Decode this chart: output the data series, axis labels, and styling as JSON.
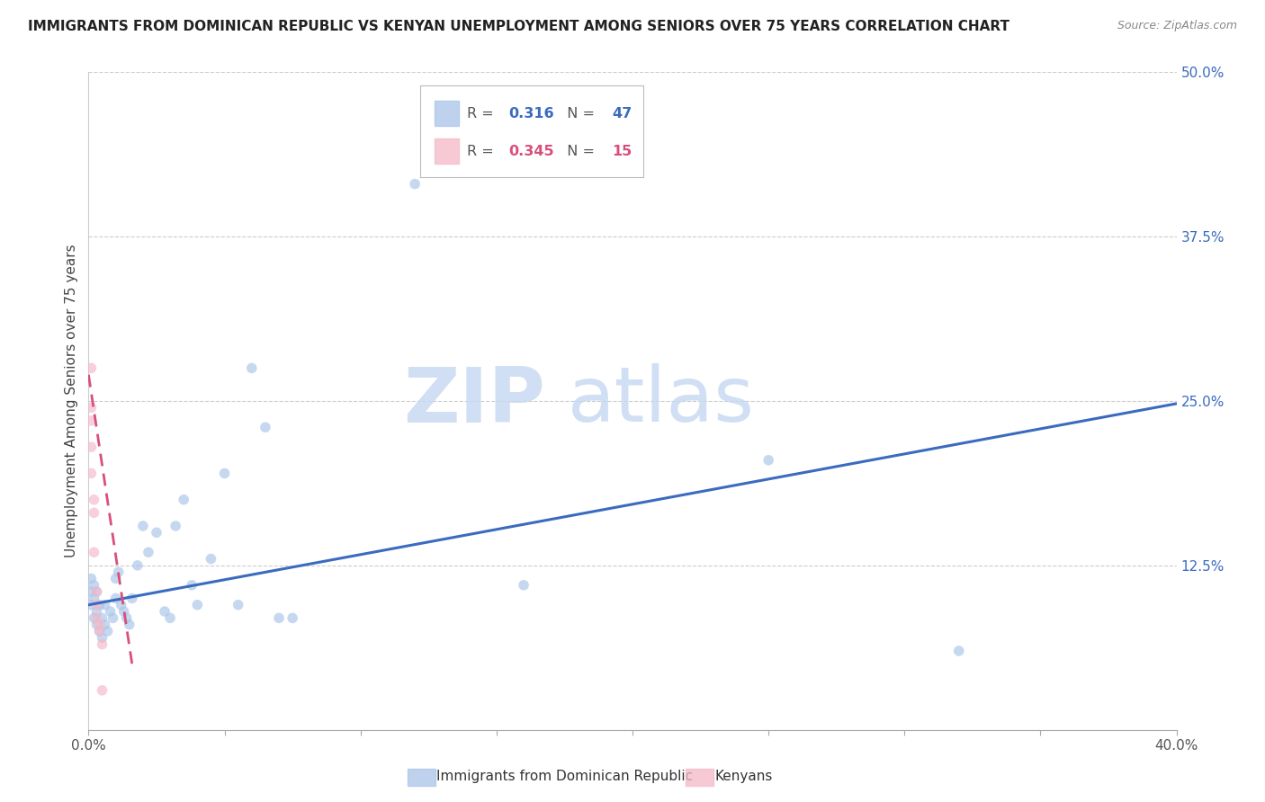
{
  "title": "IMMIGRANTS FROM DOMINICAN REPUBLIC VS KENYAN UNEMPLOYMENT AMONG SENIORS OVER 75 YEARS CORRELATION CHART",
  "source": "Source: ZipAtlas.com",
  "ylabel": "Unemployment Among Seniors over 75 years",
  "xlim": [
    0.0,
    0.4
  ],
  "ylim": [
    0.0,
    0.5
  ],
  "xticks": [
    0.0,
    0.05,
    0.1,
    0.15,
    0.2,
    0.25,
    0.3,
    0.35,
    0.4
  ],
  "xtick_labels_show": [
    "0.0%",
    "",
    "",
    "",
    "",
    "",
    "",
    "",
    "40.0%"
  ],
  "yticks_right": [
    0.0,
    0.125,
    0.25,
    0.375,
    0.5
  ],
  "ytick_labels_right": [
    "",
    "12.5%",
    "25.0%",
    "37.5%",
    "50.0%"
  ],
  "blue_color": "#a8c4e8",
  "pink_color": "#f5b8c8",
  "blue_line_color": "#3a6bbf",
  "pink_line_color": "#d94f7a",
  "legend_R_blue": "0.316",
  "legend_N_blue": "47",
  "legend_R_pink": "0.345",
  "legend_N_pink": "15",
  "legend_label_blue": "Immigrants from Dominican Republic",
  "legend_label_pink": "Kenyans",
  "watermark_zip": "ZIP",
  "watermark_atlas": "atlas",
  "blue_x": [
    0.001,
    0.001,
    0.001,
    0.002,
    0.002,
    0.002,
    0.003,
    0.003,
    0.003,
    0.004,
    0.004,
    0.005,
    0.005,
    0.006,
    0.006,
    0.007,
    0.008,
    0.009,
    0.01,
    0.01,
    0.011,
    0.012,
    0.013,
    0.014,
    0.015,
    0.016,
    0.018,
    0.02,
    0.022,
    0.025,
    0.028,
    0.03,
    0.032,
    0.035,
    0.038,
    0.04,
    0.045,
    0.05,
    0.055,
    0.06,
    0.065,
    0.07,
    0.075,
    0.12,
    0.16,
    0.25,
    0.32
  ],
  "blue_y": [
    0.095,
    0.105,
    0.115,
    0.085,
    0.1,
    0.11,
    0.08,
    0.09,
    0.105,
    0.075,
    0.095,
    0.07,
    0.085,
    0.08,
    0.095,
    0.075,
    0.09,
    0.085,
    0.1,
    0.115,
    0.12,
    0.095,
    0.09,
    0.085,
    0.08,
    0.1,
    0.125,
    0.155,
    0.135,
    0.15,
    0.09,
    0.085,
    0.155,
    0.175,
    0.11,
    0.095,
    0.13,
    0.195,
    0.095,
    0.275,
    0.23,
    0.085,
    0.085,
    0.415,
    0.11,
    0.205,
    0.06
  ],
  "pink_x": [
    0.001,
    0.001,
    0.001,
    0.001,
    0.001,
    0.002,
    0.002,
    0.002,
    0.003,
    0.003,
    0.003,
    0.004,
    0.004,
    0.005,
    0.005
  ],
  "pink_y": [
    0.275,
    0.245,
    0.235,
    0.215,
    0.195,
    0.175,
    0.165,
    0.135,
    0.105,
    0.095,
    0.085,
    0.08,
    0.075,
    0.065,
    0.03
  ],
  "blue_trend": [
    0.0,
    0.4,
    0.095,
    0.248
  ],
  "pink_trend": [
    0.0,
    0.016,
    0.27,
    0.05
  ],
  "title_fontsize": 11,
  "axis_label_fontsize": 11,
  "tick_fontsize": 11,
  "watermark_fontsize_zip": 62,
  "watermark_fontsize_atlas": 62,
  "bubble_size_blue": 70,
  "bubble_size_pink": 70
}
